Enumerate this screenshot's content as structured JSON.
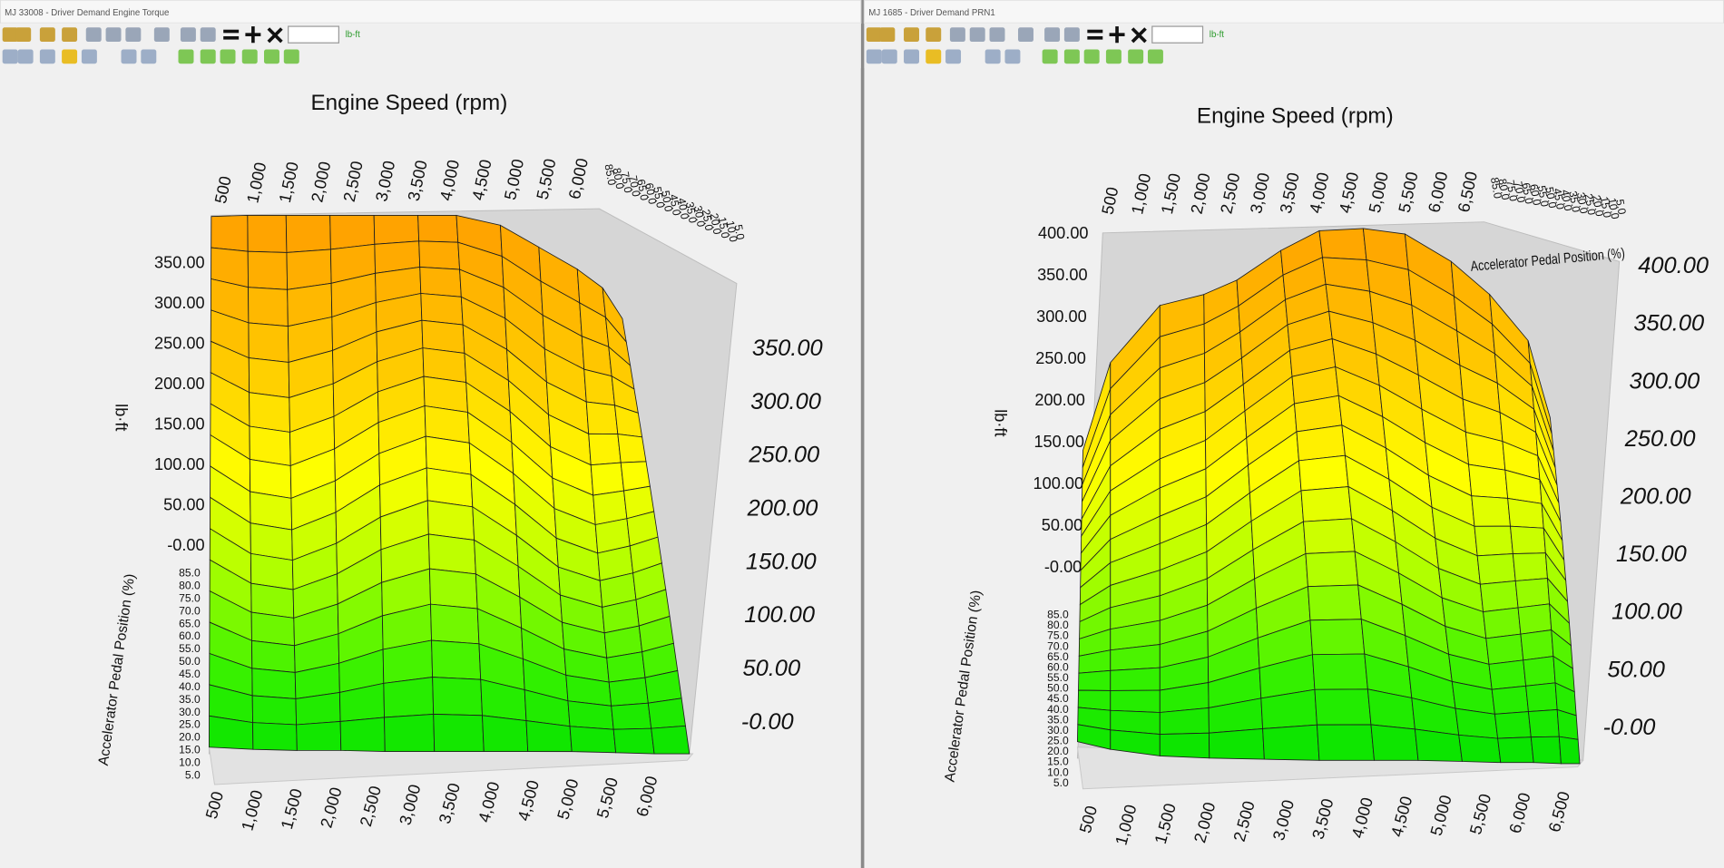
{
  "windows": [
    {
      "title": "MJ 33008 - Driver Demand Engine Torque",
      "unit": "lb-ft",
      "x_axis_title": "Engine Speed (rpm)",
      "y_axis_title": "Accelerator Pedal Position (%)",
      "z_axis_title": "lb·ft",
      "x_ticks": [
        "500",
        "1,000",
        "1,500",
        "2,000",
        "2,500",
        "3,000",
        "3,500",
        "4,000",
        "4,500",
        "5,000",
        "5,500",
        "6,000"
      ],
      "y_ticks": [
        "85.0",
        "80.0",
        "75.0",
        "70.0",
        "65.0",
        "60.0",
        "55.0",
        "50.0",
        "45.0",
        "40.0",
        "35.0",
        "30.0",
        "25.0",
        "20.0",
        "15.0",
        "10.0",
        "5.0"
      ],
      "z_ticks": [
        "350.00",
        "300.00",
        "250.00",
        "200.00",
        "150.00",
        "100.00",
        "50.00",
        "-0.00"
      ]
    },
    {
      "title": "MJ 1685 - Driver Demand PRN1",
      "unit": "lb-ft",
      "x_axis_title": "Engine Speed (rpm)",
      "y_axis_title": "Accelerator Pedal Position (%)",
      "z_axis_title": "lb·ft",
      "x_ticks": [
        "500",
        "1,000",
        "1,500",
        "2,000",
        "2,500",
        "3,000",
        "3,500",
        "4,000",
        "4,500",
        "5,000",
        "5,500",
        "6,000",
        "6,500"
      ],
      "y_ticks": [
        "85.0",
        "80.0",
        "75.0",
        "70.0",
        "65.0",
        "60.0",
        "55.0",
        "50.0",
        "45.0",
        "40.0",
        "35.0",
        "30.0",
        "25.0",
        "20.0",
        "15.0",
        "10.0",
        "5.0"
      ],
      "z_ticks": [
        "400.00",
        "350.00",
        "300.00",
        "250.00",
        "200.00",
        "150.00",
        "100.00",
        "50.00",
        "-0.00"
      ]
    }
  ]
}
